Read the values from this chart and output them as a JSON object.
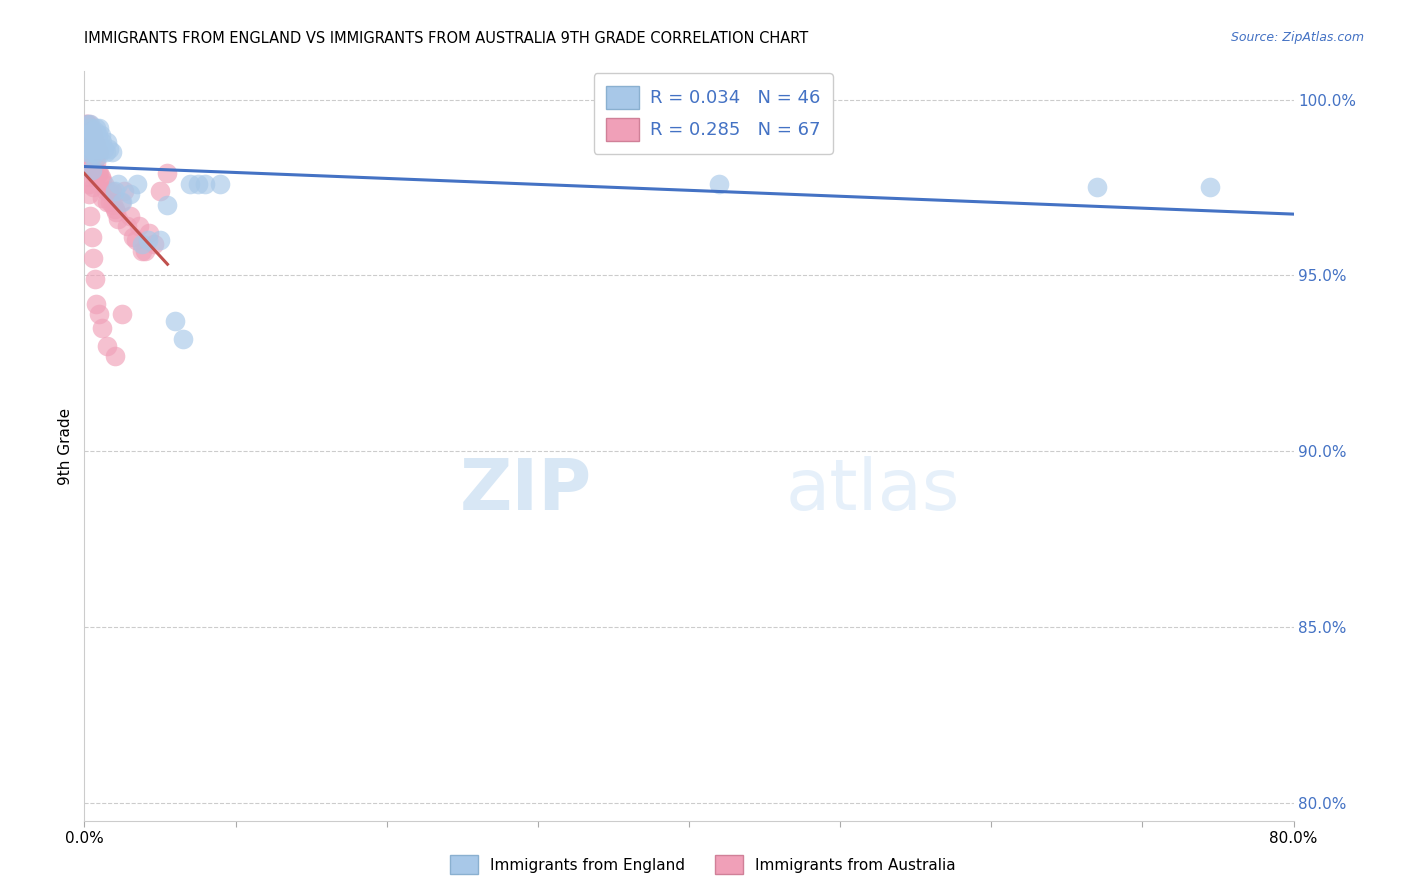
{
  "title": "IMMIGRANTS FROM ENGLAND VS IMMIGRANTS FROM AUSTRALIA 9TH GRADE CORRELATION CHART",
  "source": "Source: ZipAtlas.com",
  "ylabel": "9th Grade",
  "xlim": [
    0.0,
    0.8
  ],
  "ylim": [
    0.795,
    1.008
  ],
  "yticks": [
    0.8,
    0.85,
    0.9,
    0.95,
    1.0
  ],
  "ytick_labels": [
    "80.0%",
    "85.0%",
    "90.0%",
    "95.0%",
    "100.0%"
  ],
  "xtick_positions": [
    0.0,
    0.1,
    0.2,
    0.3,
    0.4,
    0.5,
    0.6,
    0.7,
    0.8
  ],
  "xtick_labels": [
    "0.0%",
    "",
    "",
    "",
    "",
    "",
    "",
    "",
    "80.0%"
  ],
  "england_color": "#A8C8E8",
  "australia_color": "#F0A0B8",
  "england_line_color": "#4472C4",
  "australia_line_color": "#C0504D",
  "legend_england_R": "R = 0.034",
  "legend_england_N": "N = 46",
  "legend_australia_R": "R = 0.285",
  "legend_australia_N": "N = 67",
  "watermark_zip": "ZIP",
  "watermark_atlas": "atlas",
  "england_x": [
    0.001,
    0.001,
    0.002,
    0.002,
    0.003,
    0.003,
    0.004,
    0.004,
    0.005,
    0.005,
    0.005,
    0.006,
    0.006,
    0.007,
    0.007,
    0.008,
    0.008,
    0.009,
    0.009,
    0.01,
    0.01,
    0.011,
    0.012,
    0.013,
    0.014,
    0.015,
    0.016,
    0.018,
    0.02,
    0.022,
    0.025,
    0.03,
    0.035,
    0.038,
    0.042,
    0.05,
    0.055,
    0.06,
    0.065,
    0.07,
    0.075,
    0.08,
    0.09,
    0.42,
    0.67,
    0.745
  ],
  "england_y": [
    0.99,
    0.985,
    0.993,
    0.987,
    0.992,
    0.986,
    0.993,
    0.988,
    0.991,
    0.985,
    0.98,
    0.99,
    0.984,
    0.991,
    0.985,
    0.992,
    0.986,
    0.99,
    0.984,
    0.992,
    0.986,
    0.99,
    0.988,
    0.986,
    0.985,
    0.988,
    0.986,
    0.985,
    0.974,
    0.976,
    0.971,
    0.973,
    0.976,
    0.959,
    0.96,
    0.96,
    0.97,
    0.937,
    0.932,
    0.976,
    0.976,
    0.976,
    0.976,
    0.976,
    0.975,
    0.975
  ],
  "australia_x": [
    0.001,
    0.001,
    0.001,
    0.002,
    0.002,
    0.002,
    0.003,
    0.003,
    0.003,
    0.003,
    0.003,
    0.004,
    0.004,
    0.004,
    0.005,
    0.005,
    0.005,
    0.006,
    0.006,
    0.006,
    0.006,
    0.007,
    0.007,
    0.007,
    0.008,
    0.008,
    0.009,
    0.009,
    0.01,
    0.01,
    0.011,
    0.012,
    0.012,
    0.013,
    0.014,
    0.015,
    0.016,
    0.017,
    0.018,
    0.019,
    0.02,
    0.021,
    0.022,
    0.024,
    0.026,
    0.028,
    0.03,
    0.032,
    0.034,
    0.036,
    0.038,
    0.04,
    0.043,
    0.046,
    0.05,
    0.055,
    0.003,
    0.004,
    0.005,
    0.006,
    0.007,
    0.008,
    0.01,
    0.012,
    0.015,
    0.02,
    0.025
  ],
  "australia_y": [
    0.993,
    0.988,
    0.983,
    0.993,
    0.988,
    0.982,
    0.993,
    0.988,
    0.983,
    0.978,
    0.973,
    0.991,
    0.986,
    0.981,
    0.991,
    0.986,
    0.98,
    0.99,
    0.985,
    0.98,
    0.975,
    0.988,
    0.983,
    0.978,
    0.987,
    0.982,
    0.985,
    0.979,
    0.985,
    0.979,
    0.978,
    0.977,
    0.972,
    0.976,
    0.974,
    0.971,
    0.974,
    0.971,
    0.974,
    0.97,
    0.969,
    0.968,
    0.966,
    0.971,
    0.974,
    0.964,
    0.967,
    0.961,
    0.96,
    0.964,
    0.957,
    0.957,
    0.962,
    0.959,
    0.974,
    0.979,
    0.976,
    0.967,
    0.961,
    0.955,
    0.949,
    0.942,
    0.939,
    0.935,
    0.93,
    0.927,
    0.939
  ]
}
